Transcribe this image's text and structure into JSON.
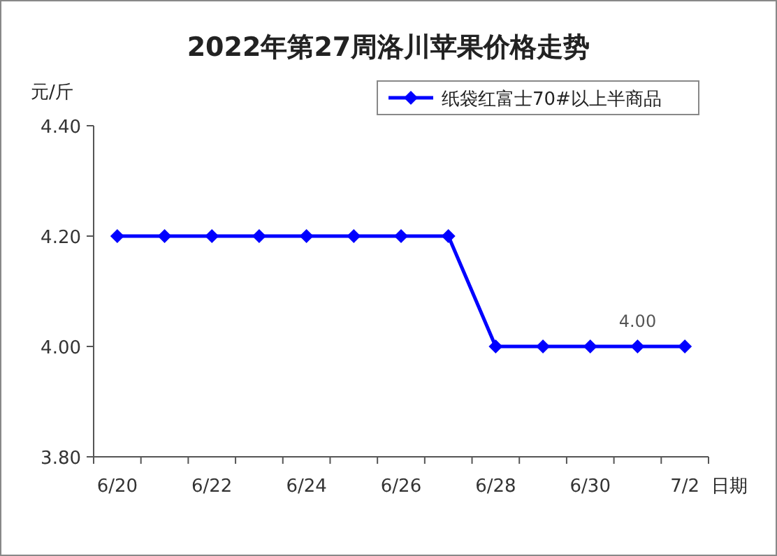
{
  "chart_data": {
    "type": "line",
    "title": "2022年第27周洛川苹果价格走势",
    "xlabel": "日期",
    "ylabel": "元/斤",
    "categories": [
      "6/20",
      null,
      "6/22",
      null,
      "6/24",
      null,
      "6/26",
      null,
      "6/28",
      null,
      "6/30",
      null,
      "7/2"
    ],
    "series": [
      {
        "name": "纸袋红富士70#以上半商品",
        "color": "#0000ff",
        "values": [
          4.2,
          4.2,
          4.2,
          4.2,
          4.2,
          4.2,
          4.2,
          4.2,
          4.0,
          4.0,
          4.0,
          4.0,
          4.0
        ],
        "value_labels": [
          null,
          null,
          null,
          null,
          null,
          null,
          null,
          null,
          null,
          null,
          null,
          "4.00",
          null
        ]
      }
    ],
    "ylim": [
      3.8,
      4.4
    ],
    "yticks": [
      {
        "value": 3.8,
        "label": "3.80"
      },
      {
        "value": 4.0,
        "label": "4.00"
      },
      {
        "value": 4.2,
        "label": "4.20"
      },
      {
        "value": 4.4,
        "label": "4.40"
      }
    ],
    "legend": "top right",
    "marker": "diamond",
    "line_style": "solid"
  }
}
